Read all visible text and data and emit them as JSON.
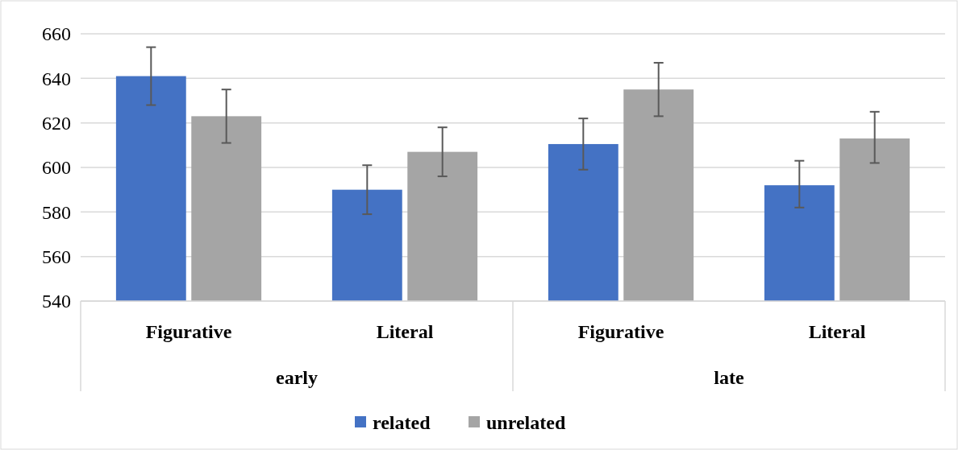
{
  "chart_data": {
    "type": "bar",
    "categories": [
      "Figurative",
      "Literal",
      "Figurative",
      "Literal"
    ],
    "series": [
      {
        "name": "related",
        "color": "#4472c4",
        "values": [
          641,
          590,
          610.5,
          592
        ],
        "errors": [
          [
            628,
            654
          ],
          [
            579,
            601
          ],
          [
            599,
            622
          ],
          [
            582,
            603
          ]
        ]
      },
      {
        "name": "unrelated",
        "color": "#a5a5a5",
        "values": [
          623,
          607,
          635,
          613
        ],
        "errors": [
          [
            611,
            635
          ],
          [
            596,
            618
          ],
          [
            623,
            647
          ],
          [
            602,
            625
          ]
        ]
      }
    ],
    "annotations": [
      "early",
      "late"
    ],
    "ylim": [
      540,
      660
    ],
    "yticks": [
      540,
      560,
      580,
      600,
      620,
      640,
      660
    ],
    "grid": "y",
    "legend": "bottom"
  }
}
